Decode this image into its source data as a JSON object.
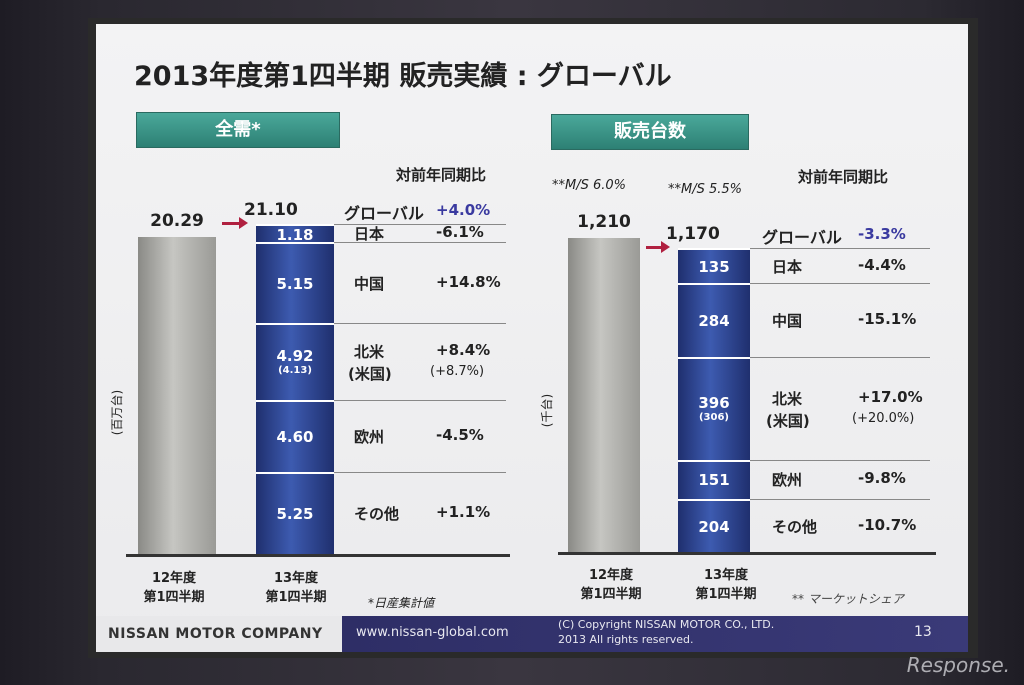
{
  "title": "2013年度第1四半期 販売実績 : グローバル",
  "left_panel": {
    "header": "全需*",
    "compare_label": "対前年同期比",
    "unit_label": "(百万台)",
    "prev_label_1": "12年度",
    "prev_label_2": "第1四半期",
    "curr_label_1": "13年度",
    "curr_label_2": "第1四半期",
    "footnote": "*日産集計値"
  },
  "right_panel": {
    "header": "販売台数",
    "compare_label": "対前年同期比",
    "unit_label": "(千台)",
    "prev_label_1": "12年度",
    "prev_label_2": "第1四半期",
    "curr_label_1": "13年度",
    "curr_label_2": "第1四半期",
    "footnote": "** マーケットシェア",
    "ms_prev": "**M/S  6.0%",
    "ms_curr": "**M/S  5.5%"
  },
  "chart_data": [
    {
      "type": "bar",
      "title": "全需*",
      "ylabel": "(百万台)",
      "categories": [
        "12年度 第1四半期",
        "13年度 第1四半期"
      ],
      "totals": [
        "20.29",
        "21.10"
      ],
      "global": {
        "label": "グローバル",
        "change": "+4.0%"
      },
      "segments": [
        {
          "region": "日本",
          "region_sub": "",
          "value": "1.18",
          "value_sub": "",
          "change": "-6.1%",
          "change_sub": ""
        },
        {
          "region": "中国",
          "region_sub": "",
          "value": "5.15",
          "value_sub": "",
          "change": "+14.8%",
          "change_sub": ""
        },
        {
          "region": "北米",
          "region_sub": "(米国)",
          "value": "4.92",
          "value_sub": "(4.13)",
          "change": "+8.4%",
          "change_sub": "(+8.7%)"
        },
        {
          "region": "欧州",
          "region_sub": "",
          "value": "4.60",
          "value_sub": "",
          "change": "-4.5%",
          "change_sub": ""
        },
        {
          "region": "その他",
          "region_sub": "",
          "value": "5.25",
          "value_sub": "",
          "change": "+1.1%",
          "change_sub": ""
        }
      ]
    },
    {
      "type": "bar",
      "title": "販売台数",
      "ylabel": "(千台)",
      "categories": [
        "12年度 第1四半期",
        "13年度 第1四半期"
      ],
      "totals": [
        "1,210",
        "1,170"
      ],
      "global": {
        "label": "グローバル",
        "change": "-3.3%"
      },
      "market_share": [
        "6.0%",
        "5.5%"
      ],
      "segments": [
        {
          "region": "日本",
          "region_sub": "",
          "value": "135",
          "value_sub": "",
          "change": "-4.4%",
          "change_sub": ""
        },
        {
          "region": "中国",
          "region_sub": "",
          "value": "284",
          "value_sub": "",
          "change": "-15.1%",
          "change_sub": ""
        },
        {
          "region": "北米",
          "region_sub": "(米国)",
          "value": "396",
          "value_sub": "(306)",
          "change": "+17.0%",
          "change_sub": "(+20.0%)"
        },
        {
          "region": "欧州",
          "region_sub": "",
          "value": "151",
          "value_sub": "",
          "change": "-9.8%",
          "change_sub": ""
        },
        {
          "region": "その他",
          "region_sub": "",
          "value": "204",
          "value_sub": "",
          "change": "-10.7%",
          "change_sub": ""
        }
      ]
    }
  ],
  "footer": {
    "company": "NISSAN MOTOR COMPANY",
    "url": "www.nissan-global.com",
    "copyright_1": "(C) Copyright NISSAN MOTOR CO., LTD.",
    "copyright_2": "2013 All rights reserved.",
    "page": "13"
  },
  "watermark": "Response.",
  "colors": {
    "bar_blue": "#2b3f8a",
    "bar_gray": "#a8a8a4",
    "header_green": "#3a9486",
    "arrow": "#b02040",
    "global_change": "#3a3aa0"
  }
}
